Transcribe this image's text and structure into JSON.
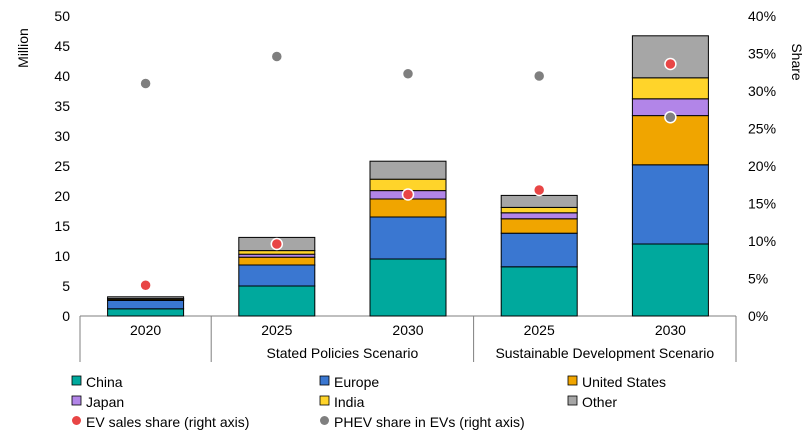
{
  "chart_data": {
    "type": "bar",
    "stacked": true,
    "title": "",
    "ylabel": "Million",
    "y2label": "Share",
    "ylim": [
      0,
      50
    ],
    "y2lim": [
      0,
      0.4
    ],
    "yticks": [
      "0",
      "5",
      "10",
      "15",
      "20",
      "25",
      "30",
      "35",
      "40",
      "45",
      "50"
    ],
    "y2ticks": [
      "0%",
      "5%",
      "10%",
      "15%",
      "20%",
      "25%",
      "30%",
      "35%",
      "40%"
    ],
    "categories": [
      "2020",
      "2025",
      "2030",
      "2025",
      "2030"
    ],
    "scenario_groups": [
      {
        "label": "",
        "categories": [
          "2020"
        ]
      },
      {
        "label": "Stated Policies Scenario",
        "categories": [
          "2025",
          "2030"
        ]
      },
      {
        "label": "Sustainable Development Scenario",
        "categories": [
          "2025",
          "2030"
        ]
      }
    ],
    "series": [
      {
        "name": "China",
        "color": "#00A99D",
        "values": [
          1.2,
          5.0,
          9.5,
          8.2,
          12.0
        ]
      },
      {
        "name": "Europe",
        "color": "#3A77D1",
        "values": [
          1.4,
          3.5,
          7.0,
          5.6,
          13.2
        ]
      },
      {
        "name": "United States",
        "color": "#F0A500",
        "values": [
          0.2,
          1.3,
          3.0,
          2.4,
          8.2
        ]
      },
      {
        "name": "Japan",
        "color": "#B285E8",
        "values": [
          0.1,
          0.5,
          1.4,
          1.0,
          2.8
        ]
      },
      {
        "name": "India",
        "color": "#FFD42A",
        "values": [
          0.0,
          0.6,
          1.9,
          0.9,
          3.5
        ]
      },
      {
        "name": "Other",
        "color": "#A6A6A6",
        "values": [
          0.3,
          2.2,
          3.0,
          2.0,
          7.0
        ]
      }
    ],
    "points": [
      {
        "name": "EV sales share (right axis)",
        "color": "#E84545",
        "values": [
          0.041,
          0.096,
          0.162,
          0.168,
          0.336
        ]
      },
      {
        "name": "PHEV share in EVs (right axis)",
        "color": "#7F7F7F",
        "values": [
          0.31,
          0.346,
          0.323,
          0.32,
          0.265
        ]
      }
    ]
  }
}
